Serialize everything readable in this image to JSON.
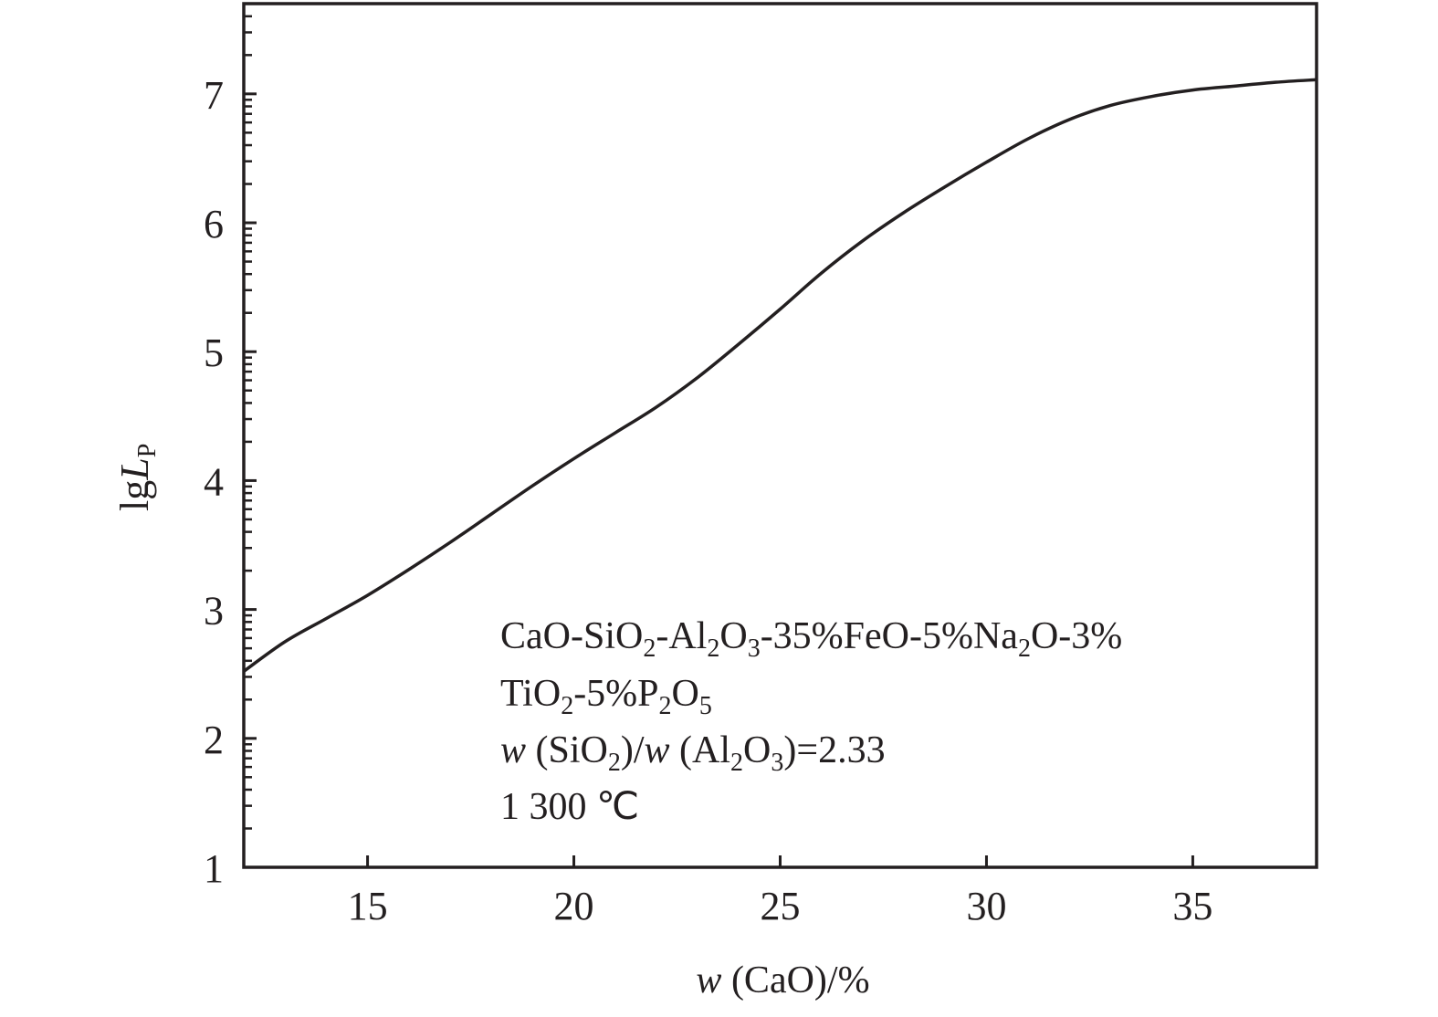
{
  "chart_data": {
    "type": "line",
    "title": "",
    "xlabel": {
      "italic": "w",
      "rest": " (CaO)/%"
    },
    "ylabel": {
      "main": "lg",
      "italic": "L",
      "sub": "P"
    },
    "xlim": [
      12,
      38
    ],
    "ylim": [
      1,
      7.7
    ],
    "xticks": [
      15,
      20,
      25,
      30,
      35
    ],
    "yticks": [
      1,
      2,
      3,
      4,
      5,
      6,
      7
    ],
    "y_minor_ticks": "logarithmic within each unit (lg scale)",
    "grid": false,
    "line_color": "#231f20",
    "series": [
      {
        "x": [
          12,
          13,
          14,
          15,
          16,
          17,
          18,
          19,
          20,
          21,
          22,
          23,
          24,
          25,
          26,
          27,
          28,
          29,
          30,
          31,
          32,
          33,
          34,
          35,
          36,
          37,
          38
        ],
        "y": [
          2.52,
          2.75,
          2.93,
          3.11,
          3.31,
          3.52,
          3.74,
          3.96,
          4.17,
          4.37,
          4.57,
          4.8,
          5.06,
          5.33,
          5.61,
          5.86,
          6.08,
          6.28,
          6.47,
          6.65,
          6.8,
          6.91,
          6.98,
          7.03,
          7.06,
          7.09,
          7.11
        ]
      }
    ],
    "annotation": [
      [
        {
          "t": "CaO-SiO"
        },
        {
          "t": "2",
          "sub": true
        },
        {
          "t": "-Al"
        },
        {
          "t": "2",
          "sub": true
        },
        {
          "t": "O"
        },
        {
          "t": "3",
          "sub": true
        },
        {
          "t": "-35%FeO-5%Na"
        },
        {
          "t": "2",
          "sub": true
        },
        {
          "t": "O-3%"
        }
      ],
      [
        {
          "t": "TiO"
        },
        {
          "t": "2",
          "sub": true
        },
        {
          "t": "-5%P"
        },
        {
          "t": "2",
          "sub": true
        },
        {
          "t": "O"
        },
        {
          "t": "5",
          "sub": true
        }
      ],
      [
        {
          "t": "w",
          "it": true
        },
        {
          "t": " (SiO"
        },
        {
          "t": "2",
          "sub": true
        },
        {
          "t": ")/"
        },
        {
          "t": "w",
          "it": true
        },
        {
          "t": " (Al"
        },
        {
          "t": "2",
          "sub": true
        },
        {
          "t": "O"
        },
        {
          "t": "3",
          "sub": true
        },
        {
          "t": ")=2.33"
        }
      ],
      [
        {
          "t": "1 300 ℃"
        }
      ]
    ]
  }
}
